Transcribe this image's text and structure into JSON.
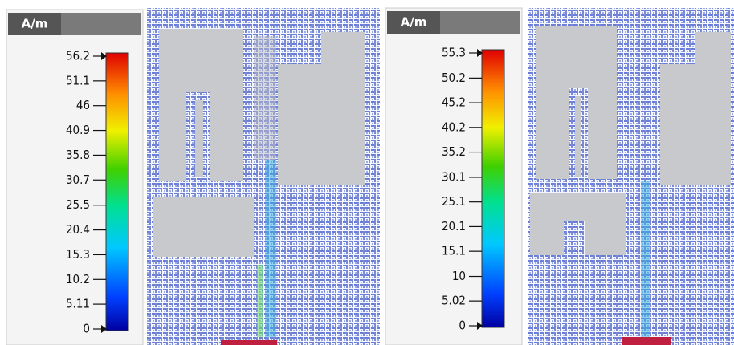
{
  "panels": [
    {
      "unit": "A/m",
      "ticks": [
        56.2,
        51.1,
        46,
        40.9,
        35.8,
        30.7,
        25.5,
        20.4,
        15.3,
        10.2,
        5.11,
        0
      ]
    },
    {
      "unit": "A/m",
      "ticks": [
        55.3,
        50.2,
        45.2,
        40.2,
        35.2,
        30.1,
        25.1,
        20.1,
        15.1,
        10,
        5.02,
        0
      ]
    }
  ]
}
